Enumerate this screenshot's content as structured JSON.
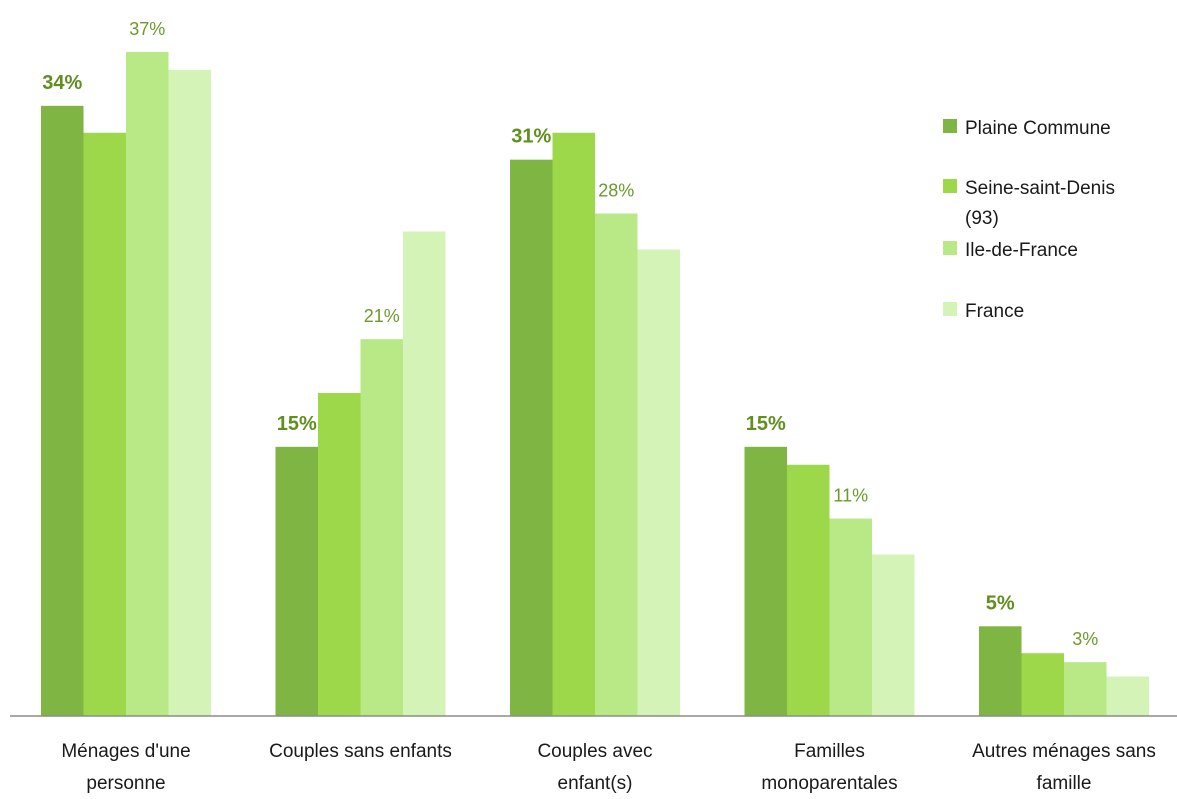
{
  "chart_data": {
    "type": "bar",
    "categories": [
      [
        "Ménages d'une",
        "personne"
      ],
      [
        "Couples sans enfants"
      ],
      [
        "Couples avec",
        "enfant(s)"
      ],
      [
        "Familles",
        "monoparentales"
      ],
      [
        "Autres ménages sans",
        "famille"
      ]
    ],
    "ylim": [
      0,
      39
    ],
    "series": [
      {
        "name": "Plaine Commune",
        "color": "#7fb543",
        "values": [
          34,
          15,
          31,
          15,
          5
        ]
      },
      {
        "name": "Seine-saint-Denis (93)",
        "legend_lines": [
          "Seine-saint-Denis",
          "(93)"
        ],
        "color": "#9cd84a",
        "values": [
          32.5,
          18,
          32.5,
          14,
          3.5
        ]
      },
      {
        "name": "Ile-de-France",
        "color": "#b8e986",
        "values": [
          37,
          21,
          28,
          11,
          3
        ]
      },
      {
        "name": "France",
        "color": "#d4f3b7",
        "values": [
          36,
          27,
          26,
          9,
          2.2
        ]
      }
    ],
    "data_labels": [
      {
        "text": "34%",
        "cat": 0,
        "series": 0,
        "style": "bold"
      },
      {
        "text": "37%",
        "cat": 0,
        "series": 2,
        "style": "normal"
      },
      {
        "text": "15%",
        "cat": 1,
        "series": 0,
        "style": "bold"
      },
      {
        "text": "21%",
        "cat": 1,
        "series": 2,
        "style": "normal"
      },
      {
        "text": "31%",
        "cat": 2,
        "series": 0,
        "style": "bold"
      },
      {
        "text": "28%",
        "cat": 2,
        "series": 2,
        "style": "normal"
      },
      {
        "text": "15%",
        "cat": 3,
        "series": 0,
        "style": "bold"
      },
      {
        "text": "11%",
        "cat": 3,
        "series": 2,
        "style": "normal"
      },
      {
        "text": "5%",
        "cat": 4,
        "series": 0,
        "style": "bold"
      },
      {
        "text": "3%",
        "cat": 4,
        "series": 2,
        "style": "normal"
      }
    ],
    "legend_position": "right",
    "grid": false
  }
}
